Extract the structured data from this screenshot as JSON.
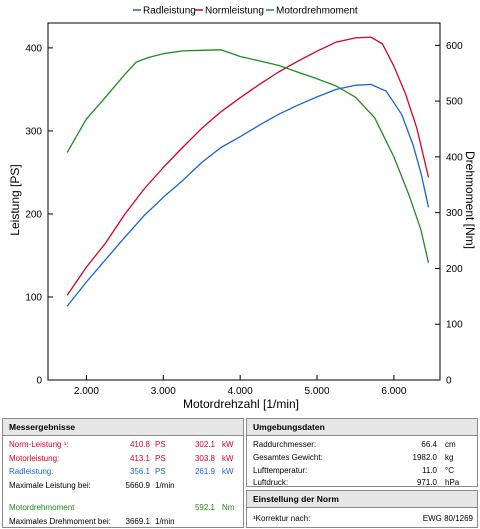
{
  "chart_data": {
    "type": "line",
    "legend_position": "top",
    "xlabel": "Motordrehzahl [1/min]",
    "ylabel_left": "Leistung [PS]",
    "ylabel_right": "Drehmoment [Nm]",
    "xlim": [
      1500,
      6600
    ],
    "ylim_left": [
      0,
      430
    ],
    "ylim_right": [
      0,
      640
    ],
    "xticks": [
      2000,
      3000,
      4000,
      5000,
      6000
    ],
    "xtick_labels": [
      "2.000",
      "3.000",
      "4.000",
      "5.000",
      "6.000"
    ],
    "yticks_left": [
      0,
      100,
      200,
      300,
      400
    ],
    "yticks_right": [
      0,
      100,
      200,
      300,
      400,
      500,
      600
    ],
    "grid": false,
    "series": [
      {
        "name": "Radleistung",
        "axis": "left",
        "color": "#1a64d2",
        "x": [
          1750,
          2000,
          2250,
          2500,
          2750,
          3000,
          3250,
          3500,
          3750,
          4000,
          4250,
          4500,
          4750,
          5000,
          5250,
          5500,
          5700,
          5900,
          6100,
          6250,
          6350,
          6450
        ],
        "y": [
          89,
          118,
          145,
          172,
          198,
          220,
          240,
          262,
          280,
          293,
          307,
          320,
          331,
          341,
          350,
          355,
          356,
          348,
          320,
          283,
          250,
          208
        ]
      },
      {
        "name": "Normleistung",
        "axis": "left",
        "color": "#d6002a",
        "x": [
          1750,
          2000,
          2250,
          2500,
          2750,
          3000,
          3250,
          3500,
          3750,
          4000,
          4250,
          4500,
          4750,
          5000,
          5250,
          5500,
          5700,
          5850,
          6000,
          6150,
          6300,
          6450
        ],
        "y": [
          102,
          136,
          165,
          200,
          230,
          256,
          280,
          303,
          323,
          340,
          356,
          371,
          384,
          396,
          407,
          412,
          413,
          405,
          378,
          345,
          303,
          244
        ]
      },
      {
        "name": "Motordrehmoment",
        "axis": "right",
        "color": "#1f8c1f",
        "x": [
          1750,
          2000,
          2250,
          2500,
          2650,
          2800,
          3000,
          3250,
          3500,
          3750,
          4000,
          4250,
          4500,
          4750,
          5000,
          5250,
          5500,
          5750,
          6000,
          6200,
          6350,
          6450
        ],
        "y": [
          408,
          468,
          507,
          548,
          570,
          578,
          585,
          590,
          591,
          592,
          580,
          572,
          564,
          552,
          540,
          527,
          507,
          470,
          400,
          330,
          270,
          210
        ]
      }
    ]
  },
  "messergebnisse": {
    "title": "Messergebnisse",
    "rows": [
      {
        "label": "Norm-Leistung ¹:",
        "v1": "410.8",
        "u1": "PS",
        "v2": "302.1",
        "u2": "kW",
        "color": "#d6002a"
      },
      {
        "label": "Motorleistung:",
        "v1": "413.1",
        "u1": "PS",
        "v2": "303.8",
        "u2": "kW",
        "color": "#d6002a"
      },
      {
        "label": "Radleistung:",
        "v1": "356.1",
        "u1": "PS",
        "v2": "261.9",
        "u2": "kW",
        "color": "#1a64d2"
      },
      {
        "label": "Maximale Leistung bei:",
        "v1": "5660.9",
        "u1": "1/min",
        "v2": "",
        "u2": "",
        "color": "#000000"
      }
    ],
    "torque_rows": [
      {
        "label": "Motordrehmoment",
        "v1": "",
        "u1": "",
        "v2": "592.1",
        "u2": "Nm",
        "color": "#1f8c1f"
      },
      {
        "label": "Maximales Drehmoment bei:",
        "v1": "3669.1",
        "u1": "1/min",
        "v2": "",
        "u2": "",
        "color": "#000000"
      }
    ]
  },
  "umgebungsdaten": {
    "title": "Umgebungsdaten",
    "rows": [
      {
        "label": "Raddurchmesser:",
        "value": "66.4",
        "unit": "cm"
      },
      {
        "label": "Gesamtes Gewicht:",
        "value": "1982.0",
        "unit": "kg"
      },
      {
        "label": "Lufttemperatur:",
        "value": "11.0",
        "unit": "°C"
      },
      {
        "label": "Luftdruck:",
        "value": "971.0",
        "unit": "hPa"
      }
    ]
  },
  "norm": {
    "title": "Einstellung der Norm",
    "label": "¹Korrektur nach:",
    "value": "EWG 80/1269"
  }
}
